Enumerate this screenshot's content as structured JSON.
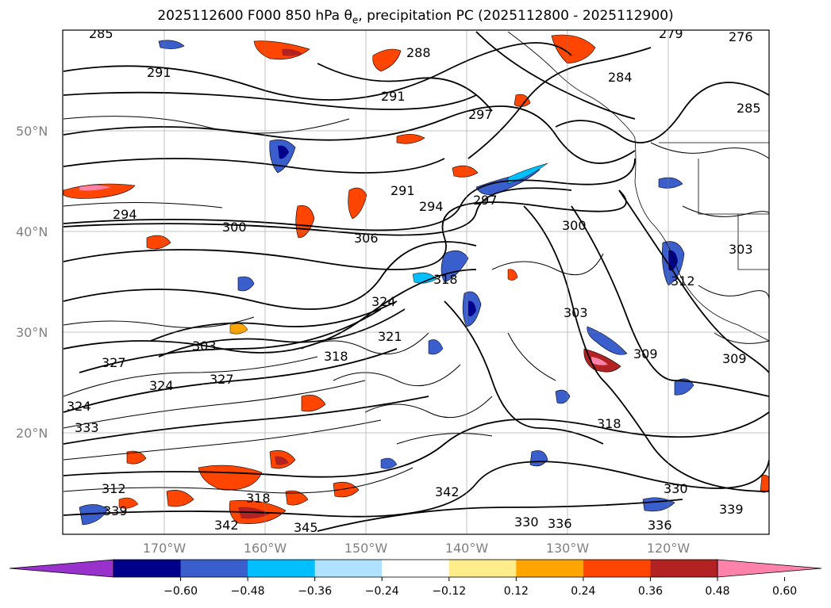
{
  "title": {
    "prefix": "2025112600 F000 850 hPa θ",
    "subscript": "e",
    "suffix": ", precipitation PC (2025112800 - 2025112900)"
  },
  "map": {
    "lat_labels": [
      "50°N",
      "40°N",
      "30°N",
      "20°N"
    ],
    "lon_labels": [
      "170°W",
      "160°W",
      "150°W",
      "140°W",
      "130°W",
      "120°W"
    ],
    "contour_labels": [
      "285",
      "279",
      "276",
      "288",
      "291",
      "291",
      "284",
      "285",
      "297",
      "291",
      "294",
      "297",
      "294",
      "300",
      "306",
      "300",
      "303",
      "312",
      "318",
      "324",
      "309",
      "318",
      "321",
      "303",
      "309",
      "303",
      "327",
      "327",
      "324",
      "324",
      "333",
      "318",
      "312",
      "318",
      "342",
      "339",
      "336",
      "336",
      "330",
      "339",
      "345",
      "342",
      "330"
    ]
  },
  "colorbar": {
    "colors": [
      "#9932CC",
      "#00008B",
      "#3A5FCD",
      "#00BFFF",
      "#B0E2FF",
      "#FFFFFF",
      "#FFEC8B",
      "#FFA500",
      "#FF4500",
      "#B22222",
      "#FF82AB"
    ],
    "tick_labels": [
      "−0.60",
      "−0.48",
      "−0.36",
      "−0.24",
      "−0.12",
      "0.12",
      "0.24",
      "0.36",
      "0.48",
      "0.60"
    ]
  }
}
